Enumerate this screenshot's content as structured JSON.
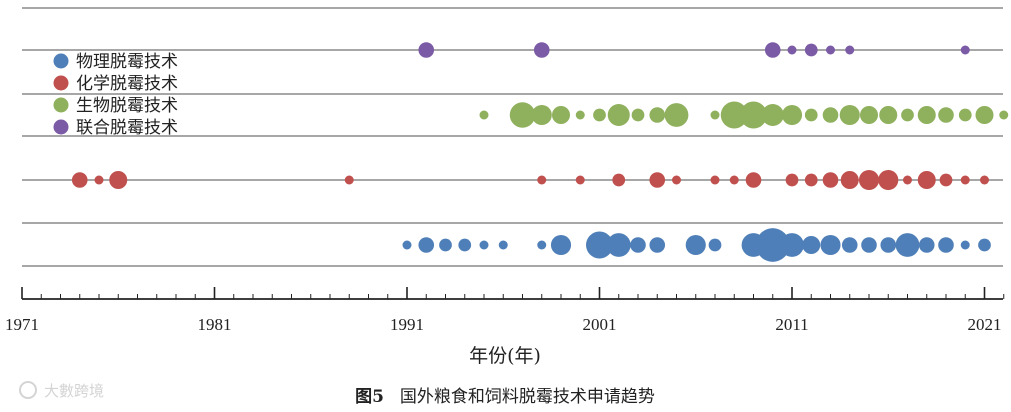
{
  "chart_data": {
    "type": "scatter",
    "xlabel": "年份(年)",
    "xlim": [
      1971,
      2022
    ],
    "xticks": [
      "1971",
      "1981",
      "1991",
      "2001",
      "2011",
      "2021"
    ],
    "grid": true,
    "legend_position": "top-left",
    "series": [
      {
        "name": "联合脱霉技术",
        "color": "#7b5ba6",
        "points": [
          [
            1992,
            3
          ],
          [
            1998,
            3
          ],
          [
            2010,
            3
          ],
          [
            2011,
            1
          ],
          [
            2012,
            2
          ],
          [
            2013,
            1
          ],
          [
            2014,
            1
          ],
          [
            2020,
            1
          ]
        ]
      },
      {
        "name": "生物脱霉技术",
        "color": "#8fb05c",
        "points": [
          [
            1995,
            1
          ],
          [
            1997,
            8
          ],
          [
            1998,
            5
          ],
          [
            1999,
            4
          ],
          [
            2000,
            1
          ],
          [
            2001,
            2
          ],
          [
            2002,
            6
          ],
          [
            2003,
            2
          ],
          [
            2004,
            3
          ],
          [
            2005,
            7
          ],
          [
            2007,
            1
          ],
          [
            2008,
            9
          ],
          [
            2009,
            9
          ],
          [
            2010,
            6
          ],
          [
            2011,
            5
          ],
          [
            2012,
            2
          ],
          [
            2013,
            3
          ],
          [
            2014,
            5
          ],
          [
            2015,
            4
          ],
          [
            2016,
            4
          ],
          [
            2017,
            2
          ],
          [
            2018,
            4
          ],
          [
            2019,
            3
          ],
          [
            2020,
            2
          ],
          [
            2021,
            4
          ],
          [
            2022,
            1
          ]
        ]
      },
      {
        "name": "化学脱霉技术",
        "color": "#c0504d",
        "points": [
          [
            1974,
            3
          ],
          [
            1975,
            1
          ],
          [
            1976,
            4
          ],
          [
            1988,
            1
          ],
          [
            1998,
            1
          ],
          [
            2000,
            1
          ],
          [
            2002,
            2
          ],
          [
            2004,
            3
          ],
          [
            2005,
            1
          ],
          [
            2007,
            1
          ],
          [
            2008,
            1
          ],
          [
            2009,
            3
          ],
          [
            2011,
            2
          ],
          [
            2012,
            2
          ],
          [
            2013,
            3
          ],
          [
            2014,
            4
          ],
          [
            2015,
            5
          ],
          [
            2016,
            5
          ],
          [
            2017,
            1
          ],
          [
            2018,
            4
          ],
          [
            2019,
            2
          ],
          [
            2020,
            1
          ],
          [
            2021,
            1
          ]
        ]
      },
      {
        "name": "物理脱霉技术",
        "color": "#4f7fb8",
        "points": [
          [
            1991,
            1
          ],
          [
            1992,
            3
          ],
          [
            1993,
            2
          ],
          [
            1994,
            2
          ],
          [
            1995,
            1
          ],
          [
            1996,
            1
          ],
          [
            1998,
            1
          ],
          [
            1999,
            5
          ],
          [
            2001,
            9
          ],
          [
            2002,
            7
          ],
          [
            2003,
            3
          ],
          [
            2004,
            3
          ],
          [
            2006,
            5
          ],
          [
            2007,
            2
          ],
          [
            2009,
            7
          ],
          [
            2010,
            14
          ],
          [
            2011,
            7
          ],
          [
            2012,
            4
          ],
          [
            2013,
            5
          ],
          [
            2014,
            3
          ],
          [
            2015,
            3
          ],
          [
            2016,
            3
          ],
          [
            2017,
            7
          ],
          [
            2018,
            3
          ],
          [
            2019,
            3
          ],
          [
            2020,
            1
          ],
          [
            2021,
            2
          ]
        ]
      }
    ]
  },
  "legend": {
    "items": [
      {
        "label": "物理脱霉技术",
        "color": "#4f7fb8"
      },
      {
        "label": "化学脱霉技术",
        "color": "#c0504d"
      },
      {
        "label": "生物脱霉技术",
        "color": "#8fb05c"
      },
      {
        "label": "联合脱霉技术",
        "color": "#7b5ba6"
      }
    ]
  },
  "caption": {
    "figure_label": "图5",
    "text": "国外粮食和饲料脱霉技术申请趋势"
  },
  "watermark": {
    "text": "大數跨境"
  }
}
